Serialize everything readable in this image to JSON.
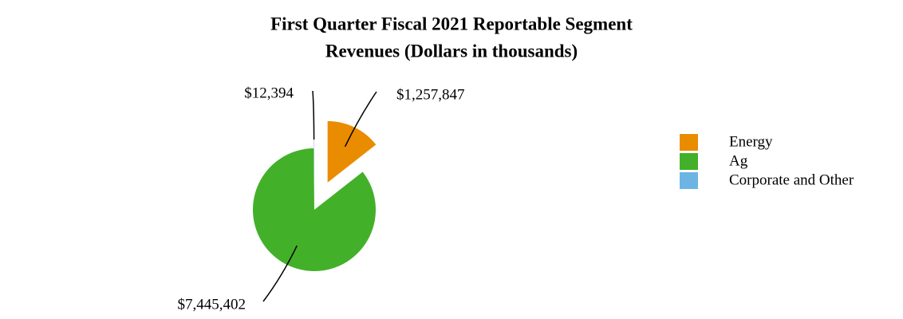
{
  "chart_data": {
    "type": "pie",
    "title": [
      "First Quarter Fiscal 2021 Reportable Segment",
      "Revenues (Dollars in thousands)"
    ],
    "categories": [
      "Energy",
      "Ag",
      "Corporate and Other"
    ],
    "values": [
      1257847,
      7445402,
      12394
    ],
    "value_labels": [
      "$1,257,847",
      "$7,445,402",
      "$12,394"
    ],
    "colors": [
      "#ea8c00",
      "#43b02a",
      "#6cb4e4"
    ],
    "legend": "right"
  }
}
